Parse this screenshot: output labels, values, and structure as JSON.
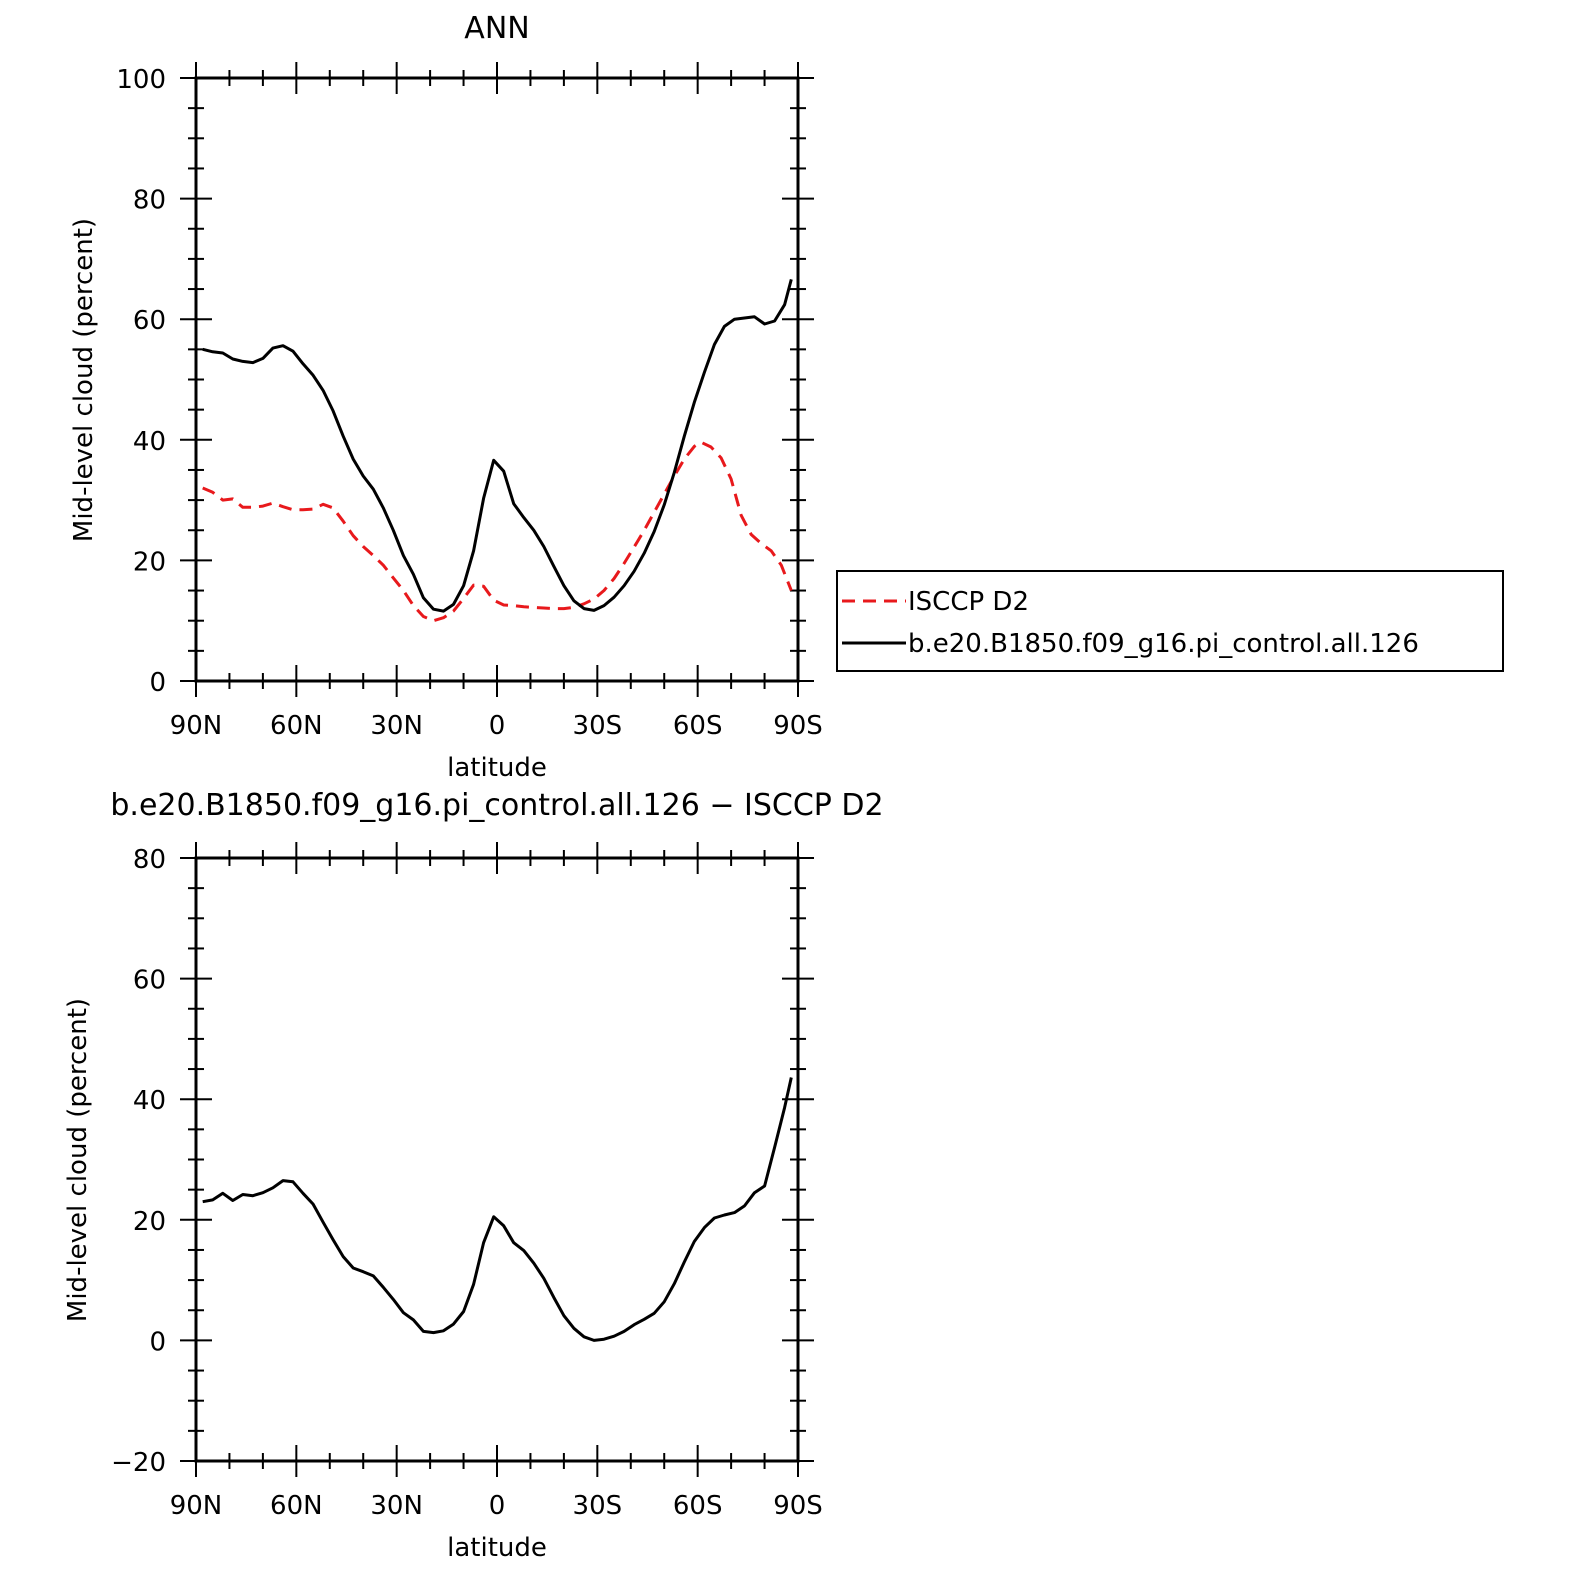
{
  "chart_data": [
    {
      "type": "line",
      "title": "ANN",
      "xlabel": "latitude",
      "ylabel": "Mid-level cloud (percent)",
      "xlim": [
        90,
        -90
      ],
      "ylim": [
        0,
        100
      ],
      "x_ticks": [
        90,
        60,
        30,
        0,
        -30,
        -60,
        -90
      ],
      "x_tick_labels": [
        "90N",
        "60N",
        "30N",
        "0",
        "30S",
        "60S",
        "90S"
      ],
      "y_ticks": [
        0,
        20,
        40,
        60,
        80,
        100
      ],
      "y_tick_labels": [
        "0",
        "20",
        "40",
        "60",
        "80",
        "100"
      ],
      "legend_position": "right",
      "series": [
        {
          "name": "ISCCP D2",
          "color": "#e8191c",
          "style": "dashed",
          "x": [
            88,
            85,
            82,
            79,
            76,
            73,
            70,
            67,
            64,
            61,
            58,
            55,
            52,
            49,
            46,
            43,
            40,
            37,
            34,
            31,
            28,
            25,
            22,
            19,
            16,
            13,
            10,
            7,
            4,
            1,
            -2,
            -5,
            -8,
            -11,
            -14,
            -17,
            -20,
            -23,
            -26,
            -29,
            -32,
            -35,
            -38,
            -41,
            -44,
            -47,
            -50,
            -53,
            -56,
            -59,
            -61,
            -64,
            -67,
            -70,
            -73,
            -76,
            -79,
            -82,
            -85,
            -88
          ],
          "values": [
            32,
            31.3,
            30,
            30.2,
            28.8,
            28.8,
            29,
            29.5,
            28.9,
            28.4,
            28.4,
            28.5,
            29.3,
            28.7,
            26.5,
            24.1,
            22.3,
            20.8,
            19.2,
            17.1,
            15,
            12.5,
            10.7,
            10,
            10.5,
            11.6,
            13.7,
            15.9,
            15.7,
            13.4,
            12.6,
            12.5,
            12.3,
            12.2,
            12.1,
            12,
            12,
            12.2,
            12.8,
            13.6,
            15,
            17,
            19.5,
            22.2,
            25,
            28,
            31,
            34,
            36.8,
            38.9,
            39.6,
            38.8,
            37,
            33.5,
            27.5,
            24.3,
            22.8,
            21.6,
            19.2,
            15
          ]
        },
        {
          "name": "b.e20.B1850.f09_g16.pi_control.all.126",
          "color": "#000000",
          "style": "solid",
          "x": [
            88,
            85,
            82,
            79,
            76,
            73,
            70,
            67,
            64,
            61,
            58,
            55,
            52,
            49,
            46,
            43,
            40,
            37,
            34,
            31,
            28,
            25,
            22,
            19,
            16,
            13,
            10,
            7,
            4,
            1,
            -2,
            -5,
            -8,
            -11,
            -14,
            -17,
            -20,
            -23,
            -26,
            -29,
            -32,
            -35,
            -38,
            -41,
            -44,
            -47,
            -50,
            -53,
            -56,
            -59,
            -62,
            -65,
            -68,
            -71,
            -74,
            -77,
            -80,
            -83,
            -86,
            -88
          ],
          "values": [
            55,
            54.6,
            54.4,
            53.4,
            53,
            52.8,
            53.5,
            55.2,
            55.6,
            54.7,
            52.6,
            50.7,
            48.2,
            44.8,
            40.6,
            36.8,
            34,
            31.8,
            28.7,
            25,
            20.8,
            17.7,
            13.8,
            11.9,
            11.6,
            12.7,
            15.8,
            21.6,
            30.3,
            36.6,
            34.8,
            29.4,
            27.1,
            25,
            22.3,
            19,
            15.8,
            13.3,
            12,
            11.7,
            12.5,
            13.9,
            15.8,
            18.2,
            21.2,
            24.8,
            29.2,
            34.6,
            40.6,
            46.2,
            51.2,
            55.8,
            58.8,
            60,
            60.2,
            60.4,
            59.2,
            59.7,
            62.4,
            66.6
          ]
        }
      ]
    },
    {
      "type": "line",
      "title": "b.e20.B1850.f09_g16.pi_control.all.126 − ISCCP D2",
      "xlabel": "latitude",
      "ylabel": "Mid-level cloud (percent)",
      "xlim": [
        90,
        -90
      ],
      "ylim": [
        -20,
        80
      ],
      "x_ticks": [
        90,
        60,
        30,
        0,
        -30,
        -60,
        -90
      ],
      "x_tick_labels": [
        "90N",
        "60N",
        "30N",
        "0",
        "30S",
        "60S",
        "90S"
      ],
      "y_ticks": [
        -20,
        0,
        20,
        40,
        60,
        80
      ],
      "y_tick_labels": [
        "−20",
        "0",
        "20",
        "40",
        "60",
        "80"
      ],
      "series": [
        {
          "color": "#000000",
          "style": "solid",
          "x": [
            88,
            85,
            82,
            79,
            76,
            73,
            70,
            67,
            64,
            61,
            58,
            55,
            52,
            49,
            46,
            43,
            40,
            37,
            34,
            31,
            28,
            25,
            22,
            19,
            16,
            13,
            10,
            7,
            4,
            1,
            -2,
            -5,
            -8,
            -11,
            -14,
            -17,
            -20,
            -23,
            -26,
            -29,
            -32,
            -35,
            -38,
            -41,
            -44,
            -47,
            -50,
            -53,
            -56,
            -59,
            -62,
            -65,
            -68,
            -71,
            -74,
            -77,
            -80,
            -83,
            -86,
            -88
          ],
          "values": [
            23,
            23.3,
            24.4,
            23.2,
            24.2,
            24,
            24.5,
            25.3,
            26.5,
            26.3,
            24.4,
            22.6,
            19.6,
            16.7,
            13.9,
            12,
            11.4,
            10.7,
            8.8,
            6.8,
            4.6,
            3.4,
            1.5,
            1.3,
            1.6,
            2.7,
            4.8,
            9.3,
            16.2,
            20.5,
            19,
            16.2,
            14.9,
            12.8,
            10.3,
            7.1,
            4.1,
            2,
            0.6,
            0,
            0.2,
            0.7,
            1.5,
            2.6,
            3.5,
            4.5,
            6.4,
            9.4,
            13,
            16.4,
            18.7,
            20.3,
            20.8,
            21.2,
            22.3,
            24.5,
            25.6,
            32,
            38.6,
            43.6
          ]
        }
      ]
    }
  ]
}
